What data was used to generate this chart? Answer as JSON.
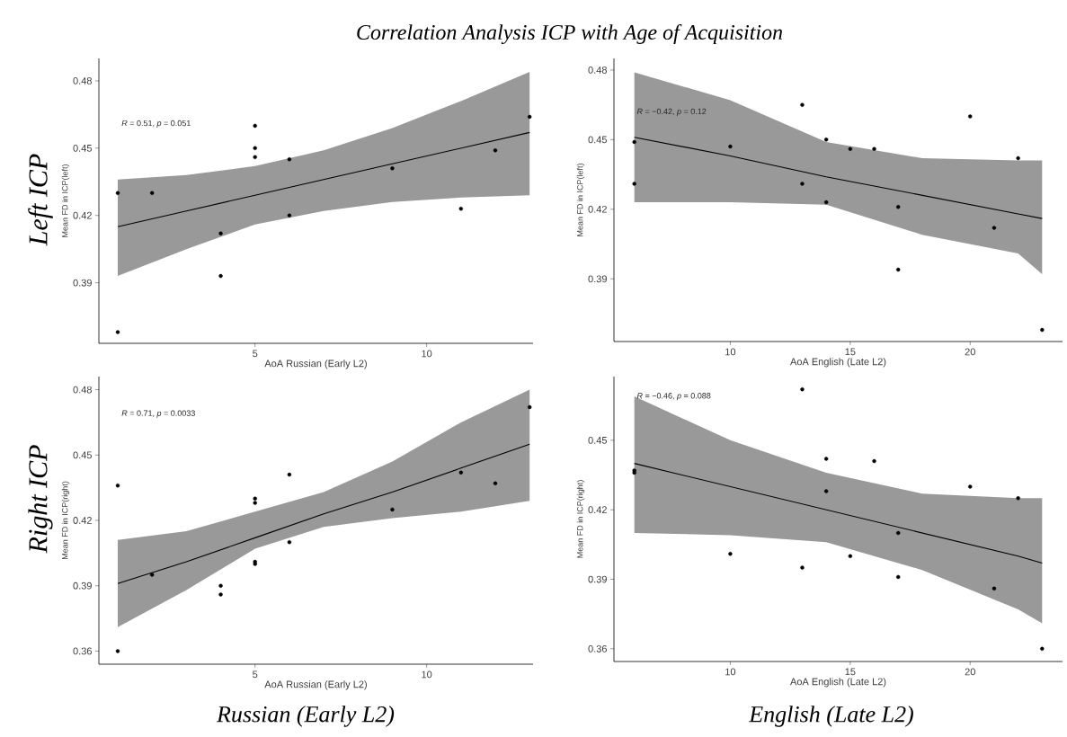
{
  "chart_data": [
    {
      "type": "scatter",
      "title": "Correlation Analysis ICP with Age of Acquisition",
      "xlabel": "AoA Russian (Early L2)",
      "ylabel": "Mean FD in ICP(left)",
      "xlim": [
        0.45,
        13.1
      ],
      "ylim": [
        0.363,
        0.49
      ],
      "xticks": [
        5,
        10
      ],
      "yticks": [
        0.39,
        0.42,
        0.45,
        0.48
      ],
      "annotations": [
        "*R* = 0.51, *p* = 0.051",
        "Left ICP"
      ],
      "series": [
        {
          "marker": "circle",
          "color": "#000000",
          "x": [
            1,
            1,
            2,
            4,
            4,
            5,
            5,
            5,
            6,
            6,
            9,
            11,
            12,
            13
          ],
          "values": [
            0.43,
            0.368,
            0.43,
            0.412,
            0.393,
            0.46,
            0.45,
            0.446,
            0.445,
            0.42,
            0.441,
            0.423,
            0.449,
            0.464
          ]
        },
        {
          "type": "line",
          "color": "#000000",
          "x": [
            1,
            3,
            5,
            7,
            9,
            11,
            13
          ],
          "values": [
            0.415,
            0.422,
            0.429,
            0.436,
            0.443,
            0.45,
            0.457
          ],
          "upper": [
            0.436,
            0.438,
            0.442,
            0.449,
            0.459,
            0.471,
            0.484
          ],
          "lower": [
            0.393,
            0.405,
            0.416,
            0.422,
            0.426,
            0.428,
            0.429
          ]
        }
      ]
    },
    {
      "type": "scatter",
      "xlabel": "AoA English (Late L2)",
      "ylabel": "Mean FD in ICP(left)",
      "xlim": [
        5.15,
        23.85
      ],
      "ylim": [
        0.363,
        0.485
      ],
      "xticks": [
        10,
        15,
        20
      ],
      "yticks": [
        0.39,
        0.42,
        0.45,
        0.48
      ],
      "annotations": [
        "*R* = −0.42, *p* = 0.12"
      ],
      "series": [
        {
          "marker": "circle",
          "color": "#000000",
          "x": [
            6,
            6,
            10,
            13,
            13,
            14,
            14,
            15,
            16,
            17,
            17,
            20,
            21,
            22,
            23
          ],
          "values": [
            0.449,
            0.431,
            0.447,
            0.465,
            0.431,
            0.45,
            0.423,
            0.446,
            0.446,
            0.421,
            0.394,
            0.46,
            0.412,
            0.442,
            0.368
          ]
        },
        {
          "type": "line",
          "color": "#000000",
          "x": [
            6,
            10,
            14,
            18,
            22,
            23
          ],
          "values": [
            0.451,
            0.443,
            0.434,
            0.426,
            0.418,
            0.416
          ],
          "upper": [
            0.479,
            0.467,
            0.449,
            0.442,
            0.441,
            0.441
          ],
          "lower": [
            0.423,
            0.423,
            0.422,
            0.409,
            0.401,
            0.392
          ]
        }
      ]
    },
    {
      "type": "scatter",
      "xlabel": "AoA Russian (Early L2)",
      "ylabel": "Mean FD in ICP(right)",
      "xlim": [
        0.45,
        13.1
      ],
      "ylim": [
        0.354,
        0.486
      ],
      "xticks": [
        5,
        10
      ],
      "yticks": [
        0.36,
        0.39,
        0.42,
        0.45,
        0.48
      ],
      "annotations": [
        "*R* = 0.71, *p* = 0.0033",
        "Right ICP",
        "Russian (Early L2)"
      ],
      "series": [
        {
          "marker": "circle",
          "color": "#000000",
          "x": [
            1,
            1,
            2,
            4,
            4,
            5,
            5,
            5,
            5,
            6,
            6,
            9,
            11,
            12,
            13
          ],
          "values": [
            0.436,
            0.36,
            0.395,
            0.39,
            0.386,
            0.43,
            0.428,
            0.401,
            0.4,
            0.441,
            0.41,
            0.425,
            0.442,
            0.437,
            0.472
          ]
        },
        {
          "type": "line",
          "color": "#000000",
          "x": [
            1,
            3,
            5,
            7,
            9,
            11,
            13
          ],
          "values": [
            0.391,
            0.401,
            0.412,
            0.423,
            0.433,
            0.444,
            0.455
          ],
          "upper": [
            0.411,
            0.415,
            0.424,
            0.433,
            0.447,
            0.465,
            0.48
          ],
          "lower": [
            0.371,
            0.388,
            0.407,
            0.417,
            0.421,
            0.424,
            0.429
          ]
        }
      ]
    },
    {
      "type": "scatter",
      "xlabel": "AoA English (Late L2)",
      "ylabel": "Mean FD in ICP(right)",
      "xlim": [
        5.15,
        23.85
      ],
      "ylim": [
        0.3545,
        0.4775
      ],
      "xticks": [
        10,
        15,
        20
      ],
      "yticks": [
        0.36,
        0.39,
        0.42,
        0.45
      ],
      "annotations": [
        "*R* = −0.46, *p* = 0.088",
        "English (Late L2)"
      ],
      "series": [
        {
          "marker": "circle",
          "color": "#000000",
          "x": [
            6,
            6,
            10,
            13,
            13,
            14,
            14,
            15,
            16,
            17,
            17,
            20,
            21,
            22,
            23
          ],
          "values": [
            0.437,
            0.436,
            0.401,
            0.472,
            0.395,
            0.442,
            0.428,
            0.4,
            0.441,
            0.41,
            0.391,
            0.43,
            0.386,
            0.425,
            0.36
          ]
        },
        {
          "type": "line",
          "color": "#000000",
          "x": [
            6,
            10,
            14,
            18,
            22,
            23
          ],
          "values": [
            0.44,
            0.43,
            0.42,
            0.41,
            0.4,
            0.397
          ],
          "upper": [
            0.469,
            0.45,
            0.436,
            0.427,
            0.425,
            0.425
          ],
          "lower": [
            0.41,
            0.409,
            0.406,
            0.394,
            0.377,
            0.371
          ]
        }
      ]
    }
  ]
}
